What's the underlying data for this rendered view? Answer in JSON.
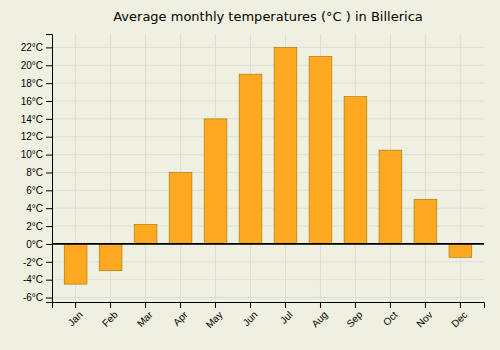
{
  "chart_data": {
    "type": "bar",
    "title": "Average monthly temperatures (°C ) in Billerica",
    "categories": [
      "Jan",
      "Feb",
      "Mar",
      "Apr",
      "May",
      "Jun",
      "Jul",
      "Aug",
      "Sep",
      "Oct",
      "Nov",
      "Dec"
    ],
    "values": [
      -4.5,
      -3.0,
      2.2,
      8.0,
      14.0,
      19.0,
      22.0,
      21.0,
      16.5,
      10.5,
      5.0,
      -1.5
    ],
    "color": "#FFA820",
    "ylim": [
      -6.5,
      23.5
    ],
    "yticks": [
      {
        "value": -6,
        "label": "-6°C"
      },
      {
        "value": -4,
        "label": "-4°C"
      },
      {
        "value": -2,
        "label": "-2°C"
      },
      {
        "value": 0,
        "label": "0°C"
      },
      {
        "value": 2,
        "label": "2°C"
      },
      {
        "value": 4,
        "label": "4°C"
      },
      {
        "value": 6,
        "label": "6°C"
      },
      {
        "value": 8,
        "label": "8°C"
      },
      {
        "value": 10,
        "label": "10°C"
      },
      {
        "value": 12,
        "label": "12°C"
      },
      {
        "value": 14,
        "label": "14°C"
      },
      {
        "value": 16,
        "label": "16°C"
      },
      {
        "value": 18,
        "label": "18°C"
      },
      {
        "value": 20,
        "label": "20°C"
      },
      {
        "value": 22,
        "label": "22°C"
      }
    ],
    "grid": true
  }
}
